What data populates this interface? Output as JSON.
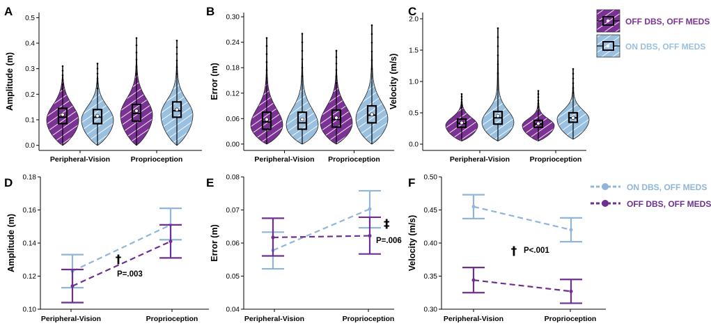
{
  "colors": {
    "off": "#7b3294",
    "on": "#9ac0e0",
    "off_line": "#6e2f8f",
    "on_line": "#8fb5d8"
  },
  "legend_top": [
    {
      "key": "off",
      "label": "OFF DBS, OFF MEDS"
    },
    {
      "key": "on",
      "label": "ON DBS, OFF MEDS"
    }
  ],
  "legend_bottom": [
    {
      "key": "on",
      "label": "ON DBS, OFF MEDS"
    },
    {
      "key": "off",
      "label": "OFF DBS, OFF MEDS"
    }
  ],
  "chart_data": [
    {
      "panel": "A",
      "type": "violin",
      "ylabel": "Amplitude (m)",
      "categories": [
        "Peripheral-Vision",
        "Proprioception"
      ],
      "ylim": [
        -0.02,
        0.52
      ],
      "yticks": [
        0.0,
        0.1,
        0.2,
        0.3,
        0.4,
        0.5
      ],
      "tick_labels": [
        "0.0",
        "0.1",
        "0.2",
        "0.3",
        "0.4",
        "0.5"
      ],
      "series": [
        {
          "name": "OFF DBS, OFF MEDS",
          "key": "off",
          "groups": [
            {
              "min": 0.0,
              "q1": 0.085,
              "median": 0.11,
              "q3": 0.145,
              "max": 0.31,
              "mean": 0.12,
              "mode": 0.1
            },
            {
              "min": 0.0,
              "q1": 0.095,
              "median": 0.125,
              "q3": 0.16,
              "max": 0.42,
              "mean": 0.135,
              "mode": 0.12
            }
          ]
        },
        {
          "name": "ON DBS, OFF MEDS",
          "key": "on",
          "groups": [
            {
              "min": 0.0,
              "q1": 0.085,
              "median": 0.11,
              "q3": 0.14,
              "max": 0.32,
              "mean": 0.115,
              "mode": 0.1
            },
            {
              "min": 0.0,
              "q1": 0.11,
              "median": 0.135,
              "q3": 0.17,
              "max": 0.41,
              "mean": 0.14,
              "mode": 0.12
            }
          ]
        }
      ]
    },
    {
      "panel": "B",
      "type": "violin",
      "ylabel": "Error (m)",
      "categories": [
        "Peripheral-Vision",
        "Proprioception"
      ],
      "ylim": [
        -0.015,
        0.31
      ],
      "yticks": [
        0.0,
        0.06,
        0.12,
        0.18,
        0.24,
        0.3
      ],
      "tick_labels": [
        "0.00",
        "0.06",
        "0.12",
        "0.18",
        "0.24",
        "0.30"
      ],
      "series": [
        {
          "name": "OFF DBS, OFF MEDS",
          "key": "off",
          "groups": [
            {
              "min": 0.0,
              "q1": 0.035,
              "median": 0.052,
              "q3": 0.075,
              "max": 0.25,
              "mean": 0.058,
              "mode": 0.045
            },
            {
              "min": 0.0,
              "q1": 0.04,
              "median": 0.058,
              "q3": 0.08,
              "max": 0.22,
              "mean": 0.062,
              "mode": 0.05
            }
          ]
        },
        {
          "name": "ON DBS, OFF MEDS",
          "key": "on",
          "groups": [
            {
              "min": 0.0,
              "q1": 0.035,
              "median": 0.05,
              "q3": 0.075,
              "max": 0.26,
              "mean": 0.058,
              "mode": 0.045
            },
            {
              "min": 0.0,
              "q1": 0.05,
              "median": 0.068,
              "q3": 0.09,
              "max": 0.28,
              "mean": 0.07,
              "mode": 0.06
            }
          ]
        }
      ]
    },
    {
      "panel": "C",
      "type": "violin",
      "ylabel": "Velocity (m/s)",
      "categories": [
        "Peripheral-Vision",
        "Proprioception"
      ],
      "ylim": [
        -0.1,
        2.1
      ],
      "yticks": [
        0.0,
        0.5,
        1.0,
        1.5,
        2.0
      ],
      "tick_labels": [
        "0.0",
        "0.5",
        "1.0",
        "1.5",
        "2.0"
      ],
      "series": [
        {
          "name": "OFF DBS, OFF MEDS",
          "key": "off",
          "groups": [
            {
              "min": 0.05,
              "q1": 0.27,
              "median": 0.33,
              "q3": 0.4,
              "max": 0.8,
              "mean": 0.34,
              "mode": 0.3
            },
            {
              "min": 0.05,
              "q1": 0.27,
              "median": 0.32,
              "q3": 0.38,
              "max": 0.85,
              "mean": 0.33,
              "mode": 0.3
            }
          ]
        },
        {
          "name": "ON DBS, OFF MEDS",
          "key": "on",
          "groups": [
            {
              "min": 0.05,
              "q1": 0.32,
              "median": 0.42,
              "q3": 0.52,
              "max": 1.85,
              "mean": 0.45,
              "mode": 0.35
            },
            {
              "min": 0.08,
              "q1": 0.35,
              "median": 0.42,
              "q3": 0.5,
              "max": 1.2,
              "mean": 0.42,
              "mode": 0.4
            }
          ]
        }
      ]
    },
    {
      "panel": "D",
      "type": "line",
      "ylabel": "Amplitude (m)",
      "categories": [
        "Peripheral-Vision",
        "Proprioception"
      ],
      "ylim": [
        0.1,
        0.18
      ],
      "yticks": [
        0.1,
        0.12,
        0.14,
        0.16,
        0.18
      ],
      "tick_labels": [
        "0.10",
        "0.12",
        "0.14",
        "0.16",
        "0.18"
      ],
      "series": [
        {
          "name": "ON DBS, OFF MEDS",
          "key": "on",
          "mean": [
            0.123,
            0.151
          ],
          "lower": [
            0.113,
            0.142
          ],
          "upper": [
            0.133,
            0.161
          ]
        },
        {
          "name": "OFF DBS, OFF MEDS",
          "key": "off",
          "mean": [
            0.114,
            0.141
          ],
          "lower": [
            0.104,
            0.131
          ],
          "upper": [
            0.124,
            0.151
          ]
        }
      ],
      "annotation": {
        "symbol": "†",
        "text": "P=.003"
      }
    },
    {
      "panel": "E",
      "type": "line",
      "ylabel": "Error (m)",
      "categories": [
        "Peripheral-Vision",
        "Proprioception"
      ],
      "ylim": [
        0.04,
        0.08
      ],
      "yticks": [
        0.04,
        0.05,
        0.06,
        0.07,
        0.08
      ],
      "tick_labels": [
        "0.04",
        "0.05",
        "0.06",
        "0.07",
        "0.08"
      ],
      "series": [
        {
          "name": "ON DBS, OFF MEDS",
          "key": "on",
          "mean": [
            0.0578,
            0.0703
          ],
          "lower": [
            0.0522,
            0.0646
          ],
          "upper": [
            0.0633,
            0.0758
          ]
        },
        {
          "name": "OFF DBS, OFF MEDS",
          "key": "off",
          "mean": [
            0.0617,
            0.0622
          ],
          "lower": [
            0.0561,
            0.0567
          ],
          "upper": [
            0.0675,
            0.0678
          ]
        }
      ],
      "annotation": {
        "symbol": "‡",
        "text": "P=.006"
      }
    },
    {
      "panel": "F",
      "type": "line",
      "ylabel": "Velocity (m/s)",
      "categories": [
        "Peripheral-Vision",
        "Proprioception"
      ],
      "ylim": [
        0.3,
        0.5
      ],
      "yticks": [
        0.3,
        0.35,
        0.4,
        0.45,
        0.5
      ],
      "tick_labels": [
        "0.30",
        "0.35",
        "0.40",
        "0.45",
        "0.50"
      ],
      "series": [
        {
          "name": "ON DBS, OFF MEDS",
          "key": "on",
          "mean": [
            0.455,
            0.42
          ],
          "lower": [
            0.437,
            0.402
          ],
          "upper": [
            0.473,
            0.438
          ]
        },
        {
          "name": "OFF DBS, OFF MEDS",
          "key": "off",
          "mean": [
            0.344,
            0.327
          ],
          "lower": [
            0.325,
            0.309
          ],
          "upper": [
            0.363,
            0.345
          ]
        }
      ],
      "annotation": {
        "symbol": "†",
        "text": "P<.001"
      }
    }
  ]
}
